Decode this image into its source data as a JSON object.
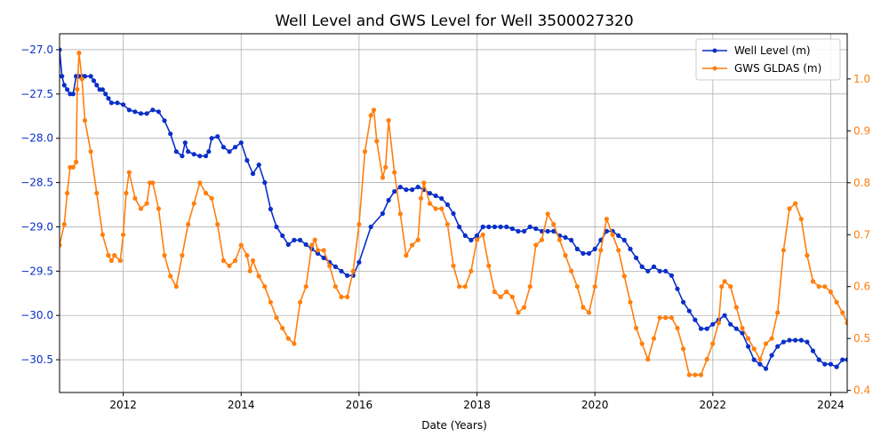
{
  "chart_data": {
    "type": "line",
    "title": "Well Level and GWS Level for Well 3500027320",
    "xlabel": "Date (Years)",
    "ylabel_left": "",
    "ylabel_right": "",
    "xlim": [
      2010.92,
      2024.28
    ],
    "ylim_left": [
      -30.87,
      -26.82
    ],
    "ylim_right": [
      0.396,
      1.087
    ],
    "x_ticks": [
      2012,
      2014,
      2016,
      2018,
      2020,
      2022,
      2024
    ],
    "y_ticks_left": [
      -27.0,
      -27.5,
      -28.0,
      -28.5,
      -29.0,
      -29.5,
      -30.0,
      -30.5
    ],
    "y_ticks_right": [
      0.4,
      0.5,
      0.6,
      0.7,
      0.8,
      0.9,
      1.0
    ],
    "grid": true,
    "legend_position": "top-right",
    "colors": {
      "left_axis": "#0a2fc8",
      "right_axis": "#ff7f0e"
    },
    "series": [
      {
        "name": "Well Level (m)",
        "axis": "left",
        "color": "#0a2fc8",
        "x": [
          2010.92,
          2010.96,
          2011.0,
          2011.05,
          2011.1,
          2011.15,
          2011.2,
          2011.25,
          2011.3,
          2011.35,
          2011.45,
          2011.5,
          2011.55,
          2011.6,
          2011.65,
          2011.7,
          2011.75,
          2011.8,
          2011.9,
          2012.0,
          2012.1,
          2012.2,
          2012.3,
          2012.4,
          2012.5,
          2012.6,
          2012.7,
          2012.8,
          2012.9,
          2013.0,
          2013.05,
          2013.1,
          2013.2,
          2013.3,
          2013.4,
          2013.45,
          2013.5,
          2013.6,
          2013.7,
          2013.8,
          2013.9,
          2014.0,
          2014.1,
          2014.2,
          2014.3,
          2014.4,
          2014.5,
          2014.6,
          2014.7,
          2014.8,
          2014.9,
          2015.0,
          2015.1,
          2015.2,
          2015.3,
          2015.4,
          2015.5,
          2015.6,
          2015.7,
          2015.8,
          2015.9,
          2016.0,
          2016.2,
          2016.4,
          2016.5,
          2016.6,
          2016.7,
          2016.8,
          2016.9,
          2017.0,
          2017.1,
          2017.2,
          2017.3,
          2017.4,
          2017.5,
          2017.6,
          2017.7,
          2017.8,
          2017.9,
          2018.0,
          2018.1,
          2018.2,
          2018.3,
          2018.4,
          2018.5,
          2018.6,
          2018.7,
          2018.8,
          2018.9,
          2019.0,
          2019.1,
          2019.2,
          2019.3,
          2019.4,
          2019.5,
          2019.6,
          2019.7,
          2019.8,
          2019.9,
          2020.0,
          2020.1,
          2020.2,
          2020.3,
          2020.4,
          2020.5,
          2020.6,
          2020.7,
          2020.8,
          2020.9,
          2021.0,
          2021.1,
          2021.2,
          2021.3,
          2021.4,
          2021.5,
          2021.6,
          2021.7,
          2021.8,
          2021.9,
          2022.0,
          2022.1,
          2022.2,
          2022.3,
          2022.4,
          2022.5,
          2022.6,
          2022.7,
          2022.8,
          2022.9,
          2023.0,
          2023.1,
          2023.2,
          2023.3,
          2023.4,
          2023.5,
          2023.6,
          2023.7,
          2023.8,
          2023.9,
          2024.0,
          2024.1,
          2024.2,
          2024.28
        ],
        "y": [
          -27.0,
          -27.3,
          -27.4,
          -27.45,
          -27.5,
          -27.5,
          -27.3,
          -27.3,
          -27.3,
          -27.3,
          -27.3,
          -27.35,
          -27.4,
          -27.45,
          -27.45,
          -27.5,
          -27.55,
          -27.6,
          -27.6,
          -27.62,
          -27.68,
          -27.7,
          -27.72,
          -27.72,
          -27.68,
          -27.7,
          -27.8,
          -27.95,
          -28.15,
          -28.2,
          -28.05,
          -28.15,
          -28.18,
          -28.2,
          -28.2,
          -28.15,
          -28.0,
          -27.98,
          -28.1,
          -28.15,
          -28.1,
          -28.05,
          -28.25,
          -28.4,
          -28.3,
          -28.5,
          -28.8,
          -29.0,
          -29.1,
          -29.2,
          -29.15,
          -29.15,
          -29.2,
          -29.25,
          -29.3,
          -29.35,
          -29.4,
          -29.45,
          -29.5,
          -29.55,
          -29.55,
          -29.4,
          -29.0,
          -28.85,
          -28.7,
          -28.6,
          -28.55,
          -28.58,
          -28.58,
          -28.55,
          -28.58,
          -28.62,
          -28.65,
          -28.68,
          -28.75,
          -28.85,
          -29.0,
          -29.1,
          -29.15,
          -29.1,
          -29.0,
          -29.0,
          -29.0,
          -29.0,
          -29.0,
          -29.02,
          -29.05,
          -29.05,
          -29.0,
          -29.02,
          -29.05,
          -29.05,
          -29.05,
          -29.1,
          -29.12,
          -29.15,
          -29.25,
          -29.3,
          -29.3,
          -29.25,
          -29.15,
          -29.05,
          -29.05,
          -29.1,
          -29.15,
          -29.25,
          -29.35,
          -29.45,
          -29.5,
          -29.45,
          -29.5,
          -29.5,
          -29.55,
          -29.7,
          -29.85,
          -29.95,
          -30.05,
          -30.15,
          -30.15,
          -30.1,
          -30.05,
          -30.0,
          -30.1,
          -30.15,
          -30.2,
          -30.35,
          -30.5,
          -30.55,
          -30.6,
          -30.45,
          -30.35,
          -30.3,
          -30.28,
          -30.28,
          -30.28,
          -30.3,
          -30.4,
          -30.5,
          -30.55,
          -30.55,
          -30.58,
          -30.5,
          -30.5
        ]
      },
      {
        "name": "GWS GLDAS (m)",
        "axis": "right",
        "color": "#ff7f0e",
        "x": [
          2010.92,
          2011.0,
          2011.05,
          2011.1,
          2011.15,
          2011.2,
          2011.22,
          2011.25,
          2011.3,
          2011.35,
          2011.45,
          2011.55,
          2011.65,
          2011.75,
          2011.8,
          2011.85,
          2011.95,
          2012.0,
          2012.05,
          2012.1,
          2012.2,
          2012.3,
          2012.4,
          2012.45,
          2012.5,
          2012.6,
          2012.7,
          2012.8,
          2012.9,
          2013.0,
          2013.1,
          2013.2,
          2013.3,
          2013.4,
          2013.5,
          2013.6,
          2013.7,
          2013.8,
          2013.9,
          2014.0,
          2014.1,
          2014.15,
          2014.2,
          2014.3,
          2014.4,
          2014.5,
          2014.6,
          2014.7,
          2014.8,
          2014.9,
          2015.0,
          2015.1,
          2015.2,
          2015.25,
          2015.3,
          2015.4,
          2015.5,
          2015.6,
          2015.7,
          2015.8,
          2015.9,
          2016.0,
          2016.1,
          2016.2,
          2016.25,
          2016.3,
          2016.4,
          2016.45,
          2016.5,
          2016.6,
          2016.7,
          2016.8,
          2016.9,
          2017.0,
          2017.05,
          2017.1,
          2017.2,
          2017.3,
          2017.4,
          2017.5,
          2017.6,
          2017.7,
          2017.8,
          2017.9,
          2018.0,
          2018.1,
          2018.2,
          2018.3,
          2018.4,
          2018.5,
          2018.6,
          2018.7,
          2018.8,
          2018.9,
          2019.0,
          2019.1,
          2019.2,
          2019.3,
          2019.4,
          2019.5,
          2019.6,
          2019.7,
          2019.8,
          2019.9,
          2020.0,
          2020.1,
          2020.2,
          2020.3,
          2020.4,
          2020.5,
          2020.6,
          2020.7,
          2020.8,
          2020.9,
          2021.0,
          2021.1,
          2021.2,
          2021.3,
          2021.4,
          2021.5,
          2021.6,
          2021.7,
          2021.8,
          2021.9,
          2022.0,
          2022.1,
          2022.15,
          2022.2,
          2022.3,
          2022.4,
          2022.5,
          2022.6,
          2022.7,
          2022.8,
          2022.9,
          2023.0,
          2023.1,
          2023.2,
          2023.3,
          2023.4,
          2023.5,
          2023.6,
          2023.7,
          2023.8,
          2023.9,
          2024.0,
          2024.1,
          2024.2,
          2024.28
        ],
        "y": [
          0.68,
          0.72,
          0.78,
          0.83,
          0.83,
          0.84,
          0.98,
          1.05,
          1.0,
          0.92,
          0.86,
          0.78,
          0.7,
          0.66,
          0.65,
          0.66,
          0.65,
          0.7,
          0.78,
          0.82,
          0.77,
          0.75,
          0.76,
          0.8,
          0.8,
          0.75,
          0.66,
          0.62,
          0.6,
          0.66,
          0.72,
          0.76,
          0.8,
          0.78,
          0.77,
          0.72,
          0.65,
          0.64,
          0.65,
          0.68,
          0.66,
          0.63,
          0.65,
          0.62,
          0.6,
          0.57,
          0.54,
          0.52,
          0.5,
          0.49,
          0.57,
          0.6,
          0.68,
          0.69,
          0.67,
          0.67,
          0.64,
          0.6,
          0.58,
          0.58,
          0.63,
          0.72,
          0.86,
          0.93,
          0.94,
          0.88,
          0.81,
          0.83,
          0.92,
          0.82,
          0.74,
          0.66,
          0.68,
          0.69,
          0.77,
          0.8,
          0.76,
          0.75,
          0.75,
          0.72,
          0.64,
          0.6,
          0.6,
          0.63,
          0.69,
          0.7,
          0.64,
          0.59,
          0.58,
          0.59,
          0.58,
          0.55,
          0.56,
          0.6,
          0.68,
          0.69,
          0.74,
          0.72,
          0.69,
          0.66,
          0.63,
          0.6,
          0.56,
          0.55,
          0.6,
          0.67,
          0.73,
          0.7,
          0.67,
          0.62,
          0.57,
          0.52,
          0.49,
          0.46,
          0.5,
          0.54,
          0.54,
          0.54,
          0.52,
          0.48,
          0.43,
          0.43,
          0.43,
          0.46,
          0.49,
          0.53,
          0.6,
          0.61,
          0.6,
          0.56,
          0.52,
          0.5,
          0.48,
          0.46,
          0.49,
          0.5,
          0.55,
          0.67,
          0.75,
          0.76,
          0.73,
          0.66,
          0.61,
          0.6,
          0.6,
          0.59,
          0.57,
          0.55,
          0.53
        ]
      }
    ]
  }
}
